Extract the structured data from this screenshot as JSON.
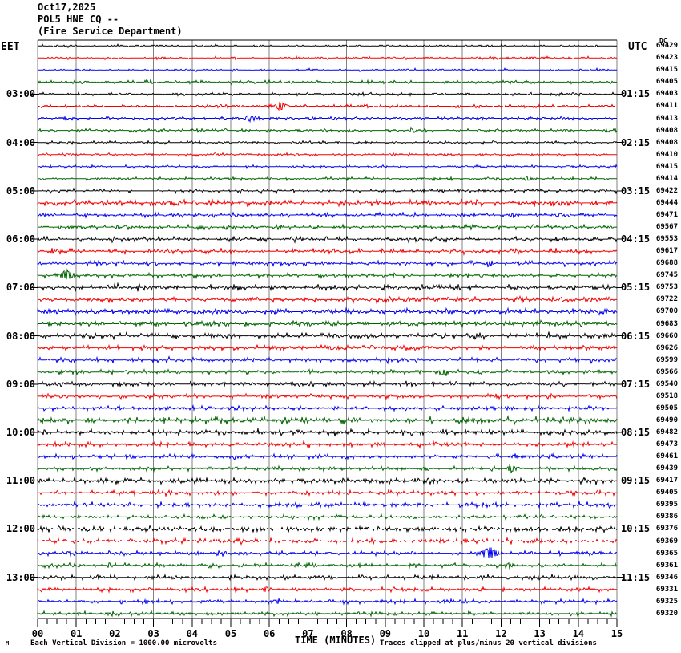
{
  "header": {
    "date": "Oct17,2025",
    "station": "POL5 HNE CQ --",
    "agency": "(Fire Service Department)"
  },
  "axis": {
    "left_label": "EET",
    "right_label": "UTC",
    "dc_label": "DC",
    "x_title": "TIME (MINUTES)",
    "footnote_left": "Each Vertical Division = 1000.00 microvolts",
    "footnote_right": "Traces clipped at plus/minus 20 vertical divisions",
    "corner_mark": "M"
  },
  "palette": {
    "black": "#000000",
    "red": "#f00000",
    "blue": "#0000ee",
    "green": "#006400",
    "grid": "#808080",
    "border": "#000000",
    "background": "#ffffff"
  },
  "chart_data": {
    "type": "line",
    "title": "POL5 HNE CQ -- (Fire Service Department) Oct17,2025",
    "x_axis": {
      "label": "TIME (MINUTES)",
      "ticks": [
        "00",
        "01",
        "02",
        "03",
        "04",
        "05",
        "06",
        "07",
        "08",
        "09",
        "10",
        "11",
        "12",
        "13",
        "14",
        "15"
      ],
      "minor_ticks_per_minute": 4,
      "minutes_per_line": 15
    },
    "left_time_axis": {
      "label": "EET",
      "hour_labels": [
        "03:00",
        "04:00",
        "05:00",
        "06:00",
        "07:00",
        "08:00",
        "09:00",
        "10:00",
        "11:00",
        "12:00",
        "13:00"
      ]
    },
    "right_time_axis": {
      "label": "UTC",
      "hour_labels": [
        "01:15",
        "02:15",
        "03:15",
        "04:15",
        "05:15",
        "06:15",
        "07:15",
        "08:15",
        "09:15",
        "10:15",
        "11:15"
      ]
    },
    "trace_color_cycle": [
      "black",
      "red",
      "blue",
      "green"
    ],
    "rows_count": 48,
    "dc_column_label": "DC",
    "dc_values": [
      69429,
      69423,
      69415,
      69405,
      69403,
      69411,
      69413,
      69408,
      69408,
      69410,
      69415,
      69414,
      69422,
      69444,
      69471,
      69567,
      69553,
      69617,
      69688,
      69745,
      69753,
      69722,
      69700,
      69683,
      69660,
      69626,
      69599,
      69566,
      69540,
      69518,
      69505,
      69490,
      69482,
      69473,
      69461,
      69439,
      69417,
      69405,
      69395,
      69386,
      69376,
      69369,
      69365,
      69361,
      69346,
      69331,
      69325,
      69320
    ],
    "row_left_labels": {
      "4": "03:00",
      "8": "04:00",
      "12": "05:00",
      "16": "06:00",
      "20": "07:00",
      "24": "08:00",
      "28": "09:00",
      "32": "10:00",
      "36": "11:00",
      "40": "12:00",
      "44": "13:00"
    },
    "row_right_labels": {
      "4": "01:15",
      "8": "02:15",
      "12": "03:15",
      "16": "04:15",
      "20": "05:15",
      "24": "06:15",
      "28": "07:15",
      "32": "08:15",
      "36": "09:15",
      "40": "10:15",
      "44": "11:15"
    },
    "row_noise_levels": [
      0.6,
      0.6,
      0.6,
      1.1,
      0.9,
      0.8,
      0.8,
      0.9,
      0.8,
      0.8,
      0.8,
      0.8,
      1.0,
      1.8,
      1.2,
      1.3,
      1.5,
      1.5,
      1.5,
      1.3,
      1.8,
      1.5,
      1.8,
      1.5,
      1.8,
      1.5,
      1.5,
      1.3,
      1.5,
      1.3,
      1.3,
      2.2,
      1.8,
      1.5,
      1.3,
      1.3,
      1.8,
      1.5,
      1.5,
      1.3,
      1.8,
      1.5,
      1.3,
      1.3,
      1.5,
      1.3,
      1.2,
      1.2
    ],
    "row_events_min_amp": {
      "5": [
        [
          6.3,
          4
        ]
      ],
      "6": [
        [
          5.5,
          3
        ]
      ],
      "7": [
        [
          9.7,
          2
        ]
      ],
      "11": [
        [
          12.7,
          2
        ]
      ],
      "14": [
        [
          12.3,
          2
        ],
        [
          13.5,
          2
        ]
      ],
      "17": [
        [
          12.4,
          3
        ]
      ],
      "18": [
        [
          11.7,
          2
        ]
      ],
      "19": [
        [
          0.75,
          5
        ]
      ],
      "24": [
        [
          14.7,
          2
        ]
      ],
      "25": [
        [
          7.6,
          2
        ]
      ],
      "27": [
        [
          10.5,
          3
        ]
      ],
      "33": [
        [
          10.3,
          2
        ]
      ],
      "34": [
        [
          12.4,
          2
        ],
        [
          13.3,
          2
        ]
      ],
      "35": [
        [
          12.3,
          3
        ]
      ],
      "42": [
        [
          11.7,
          6
        ]
      ],
      "43": [
        [
          12.2,
          2
        ]
      ],
      "45": [
        [
          5.9,
          3
        ]
      ],
      "46": [
        [
          6.2,
          2
        ]
      ]
    },
    "scale_note": "Each Vertical Division = 1000.00 microvolts",
    "clip_note": "Traces clipped at plus/minus 20 vertical divisions"
  }
}
